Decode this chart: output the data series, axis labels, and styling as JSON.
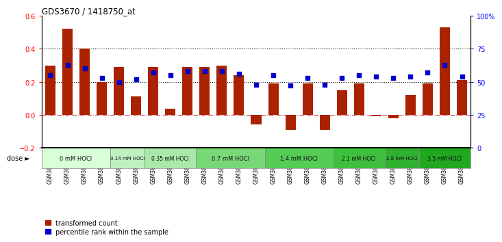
{
  "title": "GDS3670 / 1418750_at",
  "samples": [
    "GSM387601",
    "GSM387602",
    "GSM387605",
    "GSM387606",
    "GSM387645",
    "GSM387646",
    "GSM387647",
    "GSM387648",
    "GSM387649",
    "GSM387676",
    "GSM387677",
    "GSM387678",
    "GSM387679",
    "GSM387698",
    "GSM387699",
    "GSM387700",
    "GSM387701",
    "GSM387702",
    "GSM387703",
    "GSM387713",
    "GSM387714",
    "GSM387716",
    "GSM387750",
    "GSM387751",
    "GSM387752"
  ],
  "bar_values": [
    0.3,
    0.52,
    0.4,
    0.2,
    0.29,
    0.11,
    0.29,
    0.035,
    0.29,
    0.29,
    0.3,
    0.24,
    -0.06,
    0.19,
    -0.09,
    0.19,
    -0.09,
    0.15,
    0.19,
    -0.01,
    -0.02,
    0.12,
    0.19,
    0.53,
    0.21
  ],
  "percentile_values": [
    55,
    63,
    60,
    53,
    50,
    52,
    57,
    55,
    58,
    58,
    58,
    56,
    48,
    55,
    47,
    53,
    48,
    53,
    55,
    54,
    53,
    54,
    57,
    63,
    54
  ],
  "dose_groups": [
    {
      "label": "0 mM HOCl",
      "start": 0,
      "end": 4,
      "color": "#d8ffd8"
    },
    {
      "label": "0.14 mM HOCl",
      "start": 4,
      "end": 6,
      "color": "#c0f0c0"
    },
    {
      "label": "0.35 mM HOCl",
      "start": 6,
      "end": 9,
      "color": "#a8e8a8"
    },
    {
      "label": "0.7 mM HOCl",
      "start": 9,
      "end": 13,
      "color": "#78d878"
    },
    {
      "label": "1.4 mM HOCl",
      "start": 13,
      "end": 17,
      "color": "#55cc55"
    },
    {
      "label": "2.1 mM HOCl",
      "start": 17,
      "end": 20,
      "color": "#3ec03e"
    },
    {
      "label": "2.8 mM HOCl",
      "start": 20,
      "end": 22,
      "color": "#30b030"
    },
    {
      "label": "3.5 mM HOCl",
      "start": 22,
      "end": 25,
      "color": "#20a820"
    }
  ],
  "bar_color": "#aa2200",
  "percentile_color": "#0000cc",
  "background_color": "#ffffff",
  "ylim_left": [
    -0.2,
    0.6
  ],
  "ylim_right": [
    0,
    100
  ],
  "yticks_left": [
    -0.2,
    0.0,
    0.2,
    0.4,
    0.6
  ],
  "yticks_right": [
    0,
    25,
    50,
    75,
    100
  ],
  "ytick_labels_right": [
    "0",
    "25",
    "50",
    "75",
    "100%"
  ],
  "hlines": [
    0.0,
    0.2,
    0.4
  ],
  "hline_styles": [
    "dashdot",
    "dotted",
    "dotted"
  ],
  "hline_colors": [
    "#cc3333",
    "#000000",
    "#000000"
  ],
  "legend_labels": [
    "transformed count",
    "percentile rank within the sample"
  ],
  "legend_colors": [
    "#aa2200",
    "#0000cc"
  ],
  "dose_label": "dose"
}
